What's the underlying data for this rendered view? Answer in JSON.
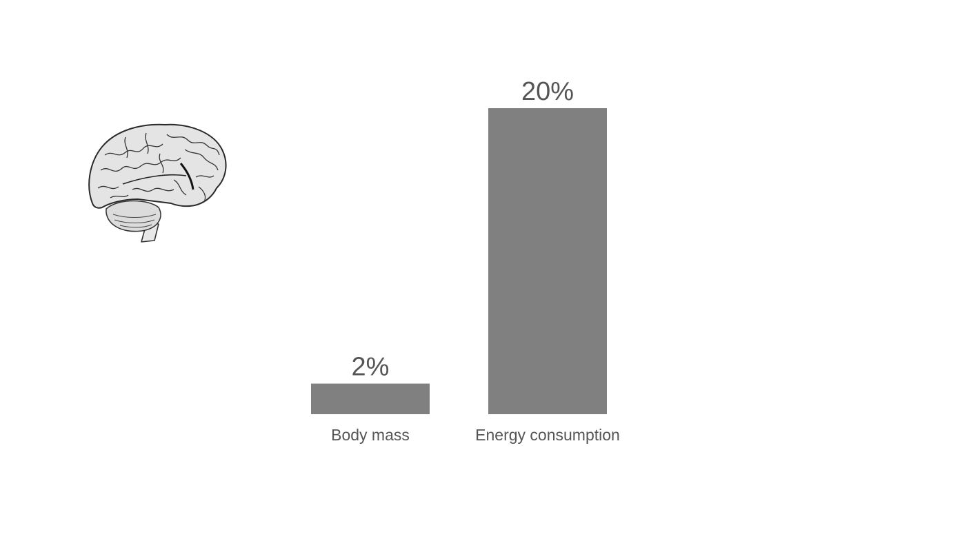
{
  "illustration": {
    "icon": "brain-icon"
  },
  "chart_data": {
    "type": "bar",
    "title": "",
    "xlabel": "",
    "ylabel": "",
    "categories": [
      "Body mass",
      "Energy consumption"
    ],
    "values": [
      2,
      20
    ],
    "value_labels": [
      "2%",
      "20%"
    ],
    "unit": "%",
    "ylim": [
      0,
      20
    ],
    "grid": false,
    "axes_visible": false,
    "bar_color": "#808080",
    "text_color": "#555555"
  }
}
